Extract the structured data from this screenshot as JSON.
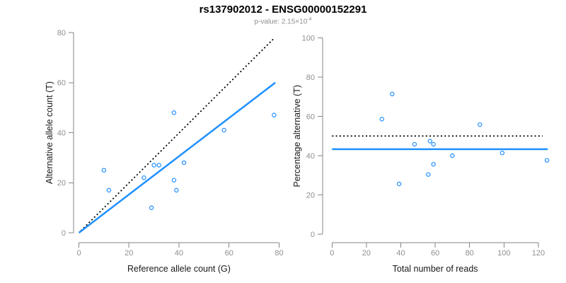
{
  "header": {
    "title": "rs137902012 - ENSG00000152291",
    "subtitle_prefix": "p-value: 2.15×10",
    "subtitle_exponent": "-4"
  },
  "colors": {
    "accent_blue": "#1E90FF",
    "line_black": "#000000",
    "axis_gray": "#858585",
    "tick_label_gray": "#8f8f8f",
    "axis_title_dark": "#1a1a1a",
    "background": "#ffffff"
  },
  "chart_data": [
    {
      "type": "scatter",
      "name": "allele-count-scatter",
      "xlabel": "Reference allele count (G)",
      "ylabel": "Alternative allele count (T)",
      "xlim": [
        0,
        80
      ],
      "ylim": [
        0,
        80
      ],
      "xticks": [
        0,
        20,
        40,
        60,
        80
      ],
      "yticks": [
        0,
        20,
        40,
        60,
        80
      ],
      "grid": false,
      "legend": false,
      "marker": "open-circle",
      "points": [
        [
          10,
          25
        ],
        [
          12,
          17
        ],
        [
          26,
          22
        ],
        [
          29,
          10
        ],
        [
          30,
          27
        ],
        [
          32,
          27
        ],
        [
          38,
          48
        ],
        [
          38,
          21
        ],
        [
          39,
          17
        ],
        [
          42,
          28
        ],
        [
          58,
          41
        ],
        [
          78,
          47
        ]
      ],
      "lines": [
        {
          "name": "identity-line",
          "style": "dotted",
          "color": "#000000",
          "x1": 0.8,
          "y1": 0.8,
          "x2": 77.8,
          "y2": 77.5
        },
        {
          "name": "regression-line",
          "style": "solid",
          "color": "#1E90FF",
          "x1": 0,
          "y1": 0,
          "x2": 78.5,
          "y2": 60
        }
      ]
    },
    {
      "type": "scatter",
      "name": "percentage-alternative-scatter",
      "xlabel": "Total number of reads",
      "ylabel": "Percentage alternative (T)",
      "xlim": [
        0,
        126
      ],
      "ylim": [
        0,
        100
      ],
      "xticks": [
        0,
        20,
        40,
        60,
        80,
        100,
        120
      ],
      "yticks": [
        0,
        20,
        40,
        60,
        80,
        100
      ],
      "grid": false,
      "legend": false,
      "marker": "open-circle",
      "points": [
        [
          29,
          58.6
        ],
        [
          35,
          71.4
        ],
        [
          39,
          25.6
        ],
        [
          48,
          45.8
        ],
        [
          56,
          30.4
        ],
        [
          57,
          47.4
        ],
        [
          59,
          45.8
        ],
        [
          59,
          35.6
        ],
        [
          70,
          40.0
        ],
        [
          86,
          55.8
        ],
        [
          99,
          41.4
        ],
        [
          125,
          37.6
        ]
      ],
      "lines": [
        {
          "name": "expected-percentage-line",
          "style": "dotted",
          "color": "#000000",
          "x1": 0,
          "y1": 50,
          "x2": 122.5,
          "y2": 50
        },
        {
          "name": "mean-percentage-line",
          "style": "solid",
          "color": "#1E90FF",
          "x1": 0,
          "y1": 43.3,
          "x2": 125.5,
          "y2": 43.3
        }
      ]
    }
  ]
}
